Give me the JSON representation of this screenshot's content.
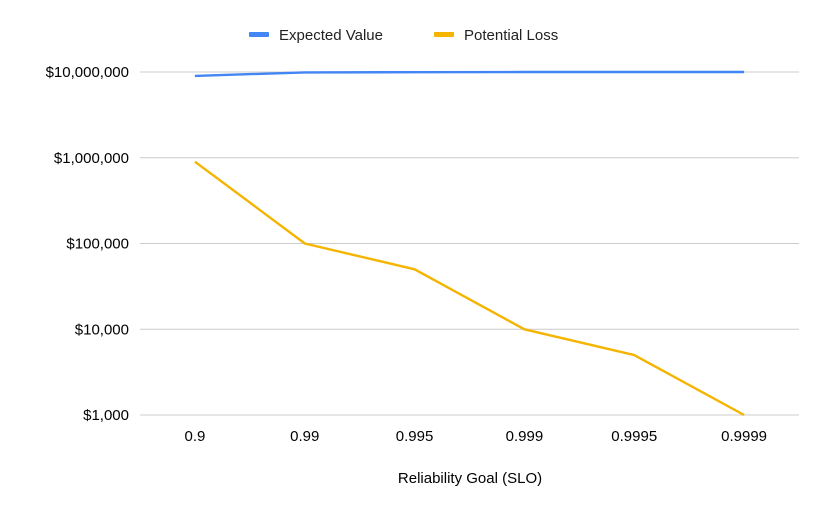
{
  "chart_data": {
    "type": "line",
    "title": "",
    "xlabel": "Reliability Goal (SLO)",
    "ylabel": "",
    "categories": [
      "0.9",
      "0.99",
      "0.995",
      "0.999",
      "0.9995",
      "0.9999"
    ],
    "y_scale": "log",
    "ylim": [
      1000,
      10000000
    ],
    "y_ticks": [
      {
        "value": 10000000,
        "label": "$10,000,000"
      },
      {
        "value": 1000000,
        "label": "$1,000,000"
      },
      {
        "value": 100000,
        "label": "$100,000"
      },
      {
        "value": 10000,
        "label": "$10,000"
      },
      {
        "value": 1000,
        "label": "$1,000"
      }
    ],
    "grid": true,
    "legend_position": "top",
    "series": [
      {
        "name": "Expected Value",
        "color": "#4285f4",
        "values": [
          9000000,
          9900000,
          9950000,
          9990000,
          9995000,
          9999000
        ]
      },
      {
        "name": "Potential Loss",
        "color": "#f4b400",
        "values": [
          900000,
          100000,
          50000,
          10000,
          5000,
          1000
        ]
      }
    ]
  }
}
